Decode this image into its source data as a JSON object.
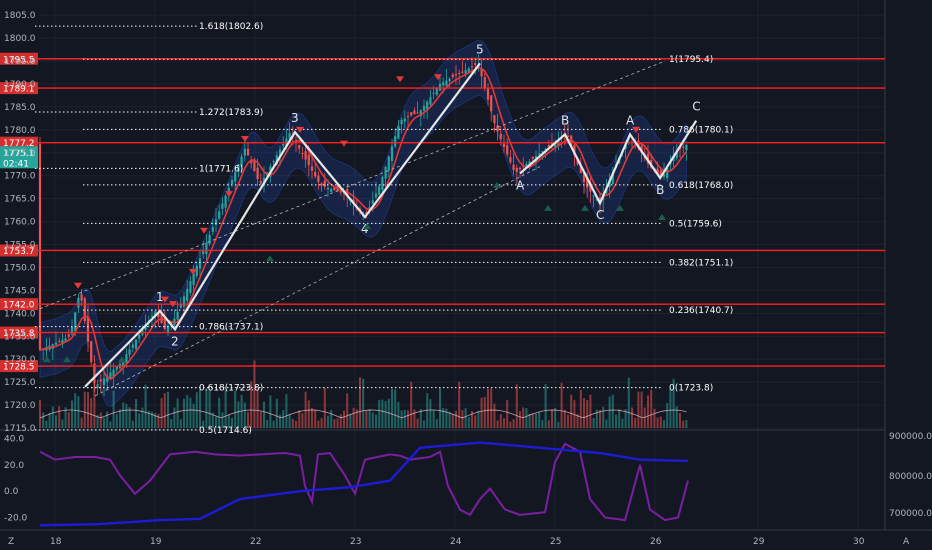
{
  "chart_data": [
    {
      "type": "candlestick",
      "panel": "main",
      "ylim": [
        1715,
        1807
      ],
      "y_ticks": [
        "1715.0",
        "1720.0",
        "1725.0",
        "1730.0",
        "1735.0",
        "1740.0",
        "1745.0",
        "1750.0",
        "1755.0",
        "1760.0",
        "1765.0",
        "1770.0",
        "1775.0",
        "1780.0",
        "1785.0",
        "1790.0",
        "1795.0",
        "1800.0",
        "1805.0"
      ],
      "x_ticks": [
        "18",
        "19",
        "22",
        "23",
        "24",
        "25",
        "26",
        "29",
        "30"
      ],
      "current_price": "1775.1",
      "countdown": "02:41",
      "price_levels": [
        {
          "label": "1795.5",
          "value": 1795.5
        },
        {
          "label": "1789.1",
          "value": 1789.1
        },
        {
          "label": "1777.2",
          "value": 1777.2
        },
        {
          "label": "1753.7",
          "value": 1753.7
        },
        {
          "label": "1742.0",
          "value": 1742.0
        },
        {
          "label": "1735.8",
          "value": 1735.8
        },
        {
          "label": "1728.5",
          "value": 1728.5
        }
      ],
      "fib_retracement_upper": [
        {
          "label": "1(1795.4)",
          "value": 1795.4
        },
        {
          "label": "0.786(1780.1)",
          "value": 1780.1
        },
        {
          "label": "0.618(1768.0)",
          "value": 1768.0
        },
        {
          "label": "0.5(1759.6)",
          "value": 1759.6
        },
        {
          "label": "0.382(1751.1)",
          "value": 1751.1
        },
        {
          "label": "0.236(1740.7)",
          "value": 1740.7
        },
        {
          "label": "0(1723.8)",
          "value": 1723.8
        }
      ],
      "fib_retracement_lower": [
        {
          "label": "1.618(1802.6)",
          "value": 1802.6
        },
        {
          "label": "1.272(1783.9)",
          "value": 1783.9
        },
        {
          "label": "1(1771.6)",
          "value": 1771.6
        },
        {
          "label": "0.786(1737.1)",
          "value": 1737.1
        },
        {
          "label": "0.618(1723.8)",
          "value": 1723.8
        },
        {
          "label": "0.5(1714.6)",
          "value": 1714.6
        }
      ],
      "elliott_waves": {
        "impulse": [
          {
            "label": "",
            "x": "18.3",
            "y": 1724
          },
          {
            "label": "1",
            "x": "19.05",
            "y": 1740.5
          },
          {
            "label": "2",
            "x": "19.2",
            "y": 1736.5
          },
          {
            "label": "3",
            "x": "22.4",
            "y": 1779.5
          },
          {
            "label": "4",
            "x": "23.1",
            "y": 1761
          },
          {
            "label": "5",
            "x": "24.25",
            "y": 1794.5
          }
        ],
        "correction": [
          {
            "label": "A",
            "x": "24.65",
            "y": 1770.5
          },
          {
            "label": "B",
            "x": "25.1",
            "y": 1779
          },
          {
            "label": "C",
            "x": "25.45",
            "y": 1764
          },
          {
            "label": "A",
            "x": "25.75",
            "y": 1779
          },
          {
            "label": "B",
            "x": "26.05",
            "y": 1769.5
          },
          {
            "label": "C",
            "x": "26.4",
            "y": 1782
          }
        ]
      },
      "series_colors": {
        "up": "#26a69a",
        "down": "#ef5350",
        "ma": "#e53935",
        "band": "#2962ff",
        "waves": "#e6e6e6",
        "levels": "#ff2020"
      }
    },
    {
      "type": "line",
      "panel": "oscillator",
      "ylim": [
        -28,
        45
      ],
      "y_ticks": [
        "40.0",
        "20.0",
        "0.0",
        "-20.0"
      ],
      "y2_ticks": [
        "900000.0",
        "800000.0",
        "700000.0"
      ],
      "series": [
        {
          "color": "#7b1fa2"
        },
        {
          "color": "#1c1cd6"
        }
      ]
    }
  ],
  "footer": {
    "logo_left": "Z",
    "logo_right": "A"
  }
}
